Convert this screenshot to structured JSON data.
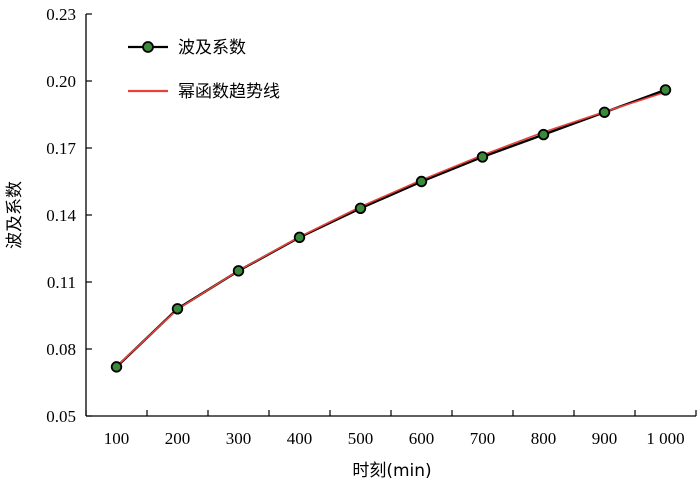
{
  "chart_data": {
    "type": "line",
    "xlabel": "时刻(min)",
    "ylabel": "波及系数",
    "categories": [
      100,
      200,
      300,
      400,
      500,
      600,
      700,
      800,
      900,
      1000
    ],
    "x_tick_labels": [
      "100",
      "200",
      "300",
      "400",
      "500",
      "600",
      "700",
      "800",
      "900",
      "1 000"
    ],
    "y_ticks": [
      0.05,
      0.08,
      0.11,
      0.14,
      0.17,
      0.2,
      0.23
    ],
    "y_tick_labels": [
      "0.05",
      "0.08",
      "0.11",
      "0.14",
      "0.17",
      "0.20",
      "0.23"
    ],
    "ylim": [
      0.05,
      0.23
    ],
    "grid": false,
    "legend_position": "top-left",
    "series": [
      {
        "name": "波及系数",
        "values": [
          0.072,
          0.098,
          0.115,
          0.13,
          0.143,
          0.155,
          0.166,
          0.176,
          0.186,
          0.196
        ],
        "color": "#000000",
        "marker_color": "#3b8a3b",
        "marker": "circle"
      },
      {
        "name": "幂函数趋势线",
        "values": [
          0.0722,
          0.0978,
          0.1151,
          0.1302,
          0.1437,
          0.1557,
          0.1668,
          0.1771,
          0.1862,
          0.195
        ],
        "color": "#e8413a",
        "marker": "none"
      }
    ]
  }
}
